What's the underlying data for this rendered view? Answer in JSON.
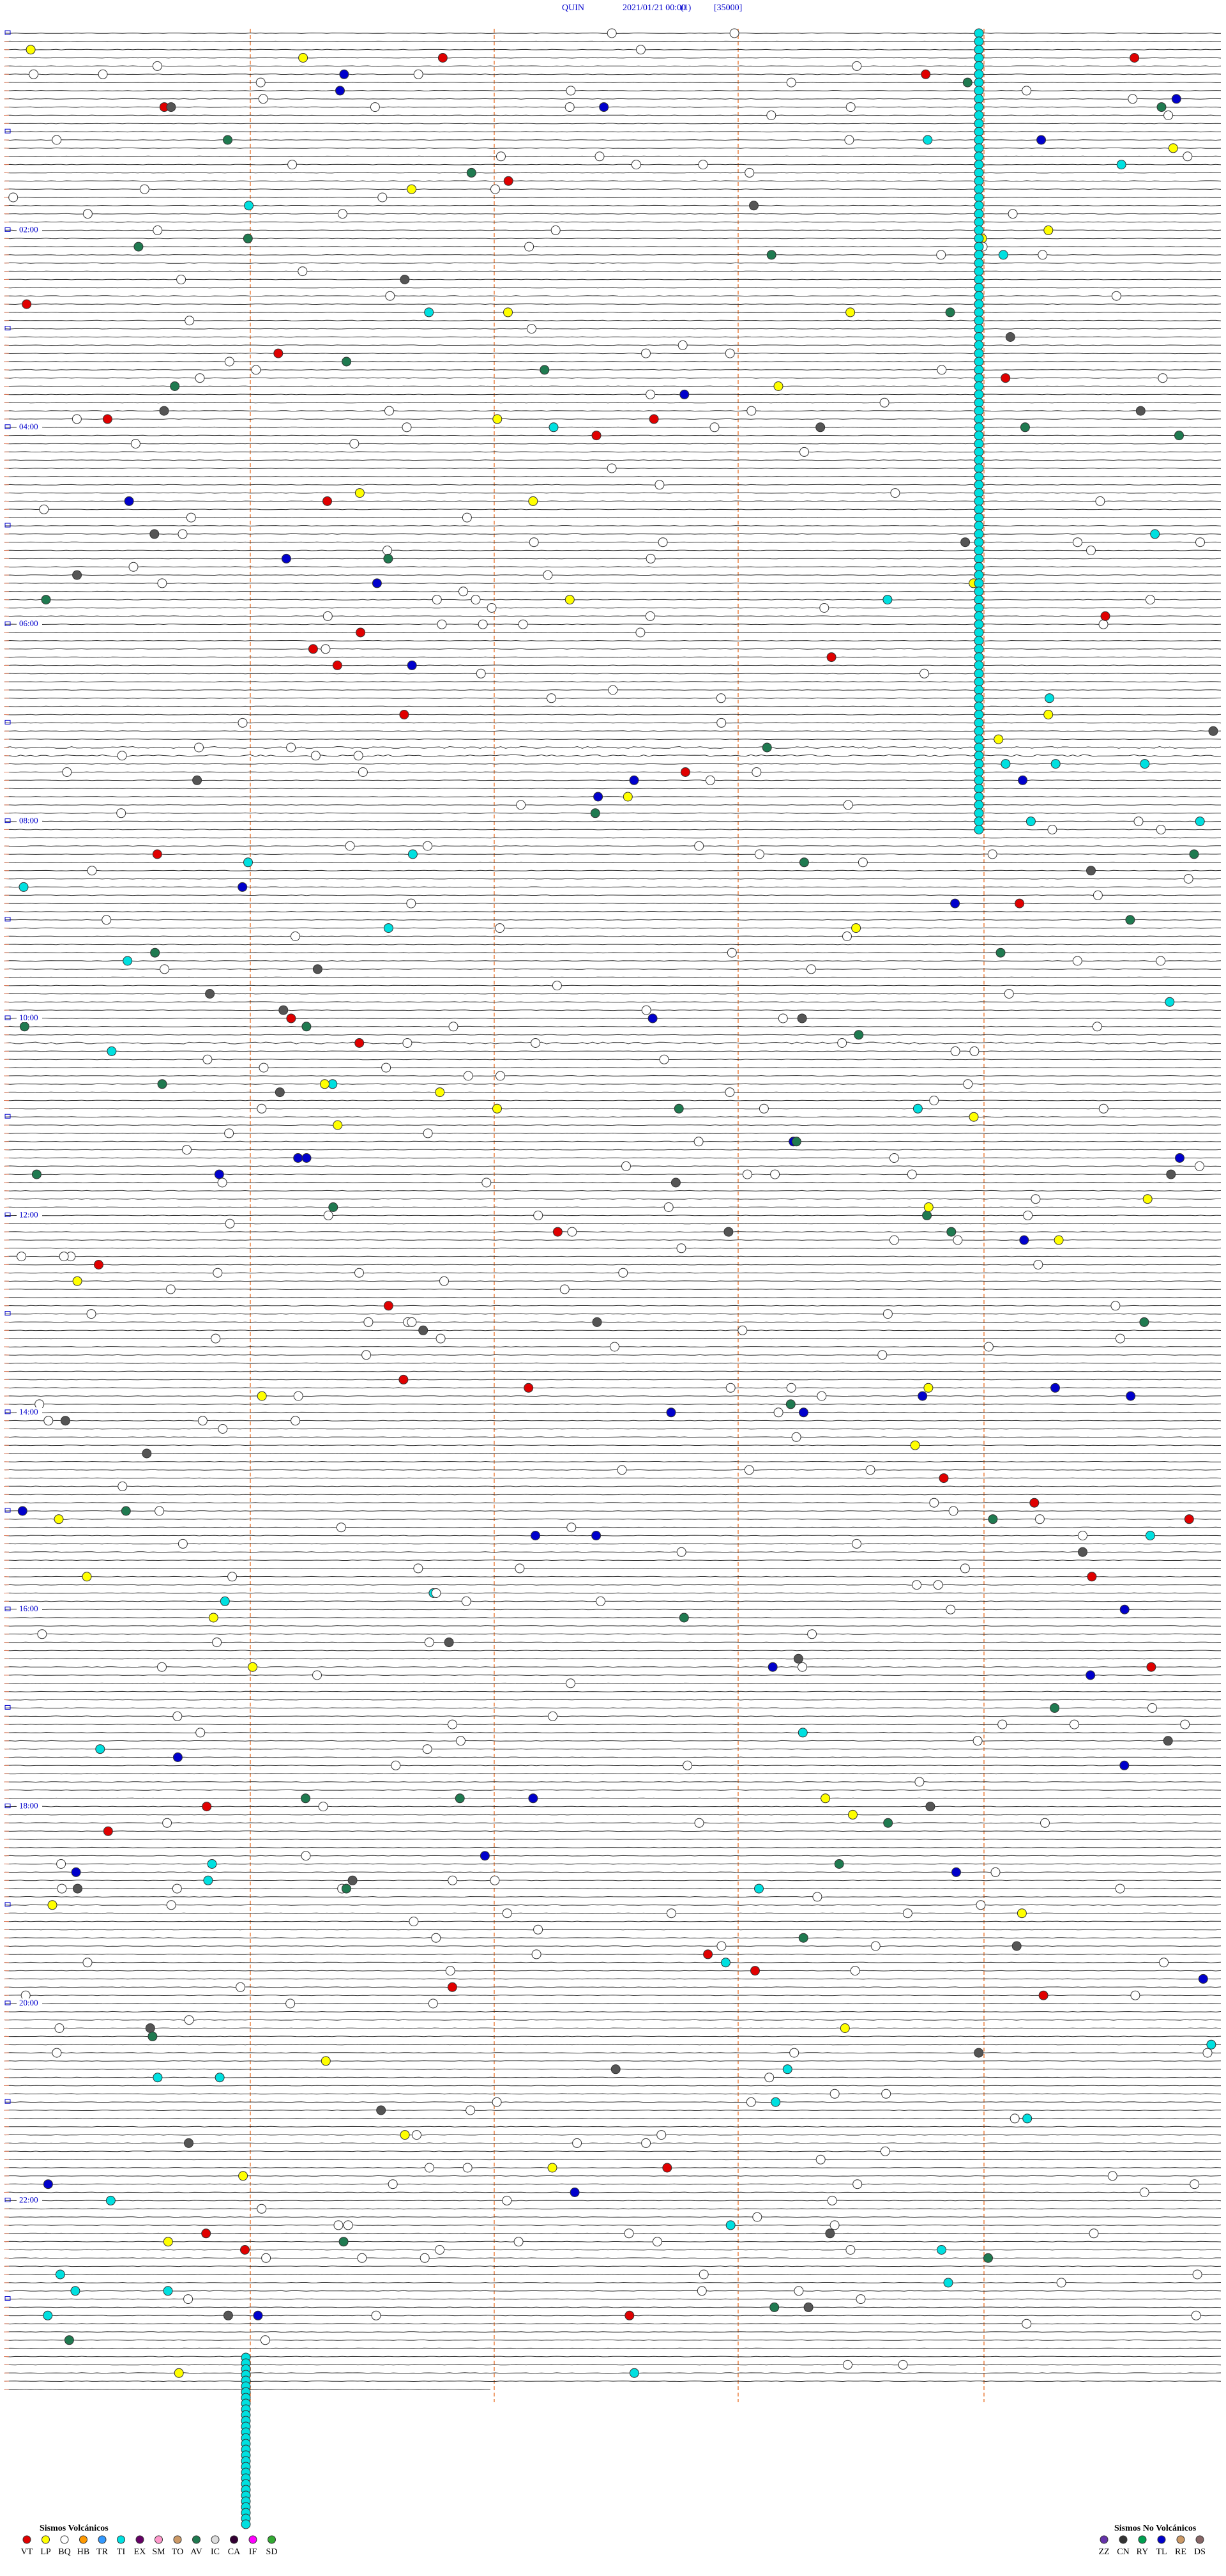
{
  "header": {
    "station": "QUIN",
    "datetime": "2021/01/21 00:00",
    "channel": "(1)",
    "scale": "[35000]"
  },
  "hour_labels": [
    "02:00",
    "04:00",
    "06:00",
    "08:00",
    "10:00",
    "12:00",
    "14:00",
    "16:00",
    "18:00",
    "20:00",
    "22:00"
  ],
  "legend": {
    "volcanic": {
      "title": "Sismos Volcánicos",
      "items": [
        {
          "label": "VT",
          "color": "#e00000"
        },
        {
          "label": "LP",
          "color": "#ffff00"
        },
        {
          "label": "BQ",
          "color": "#ffffff"
        },
        {
          "label": "HB",
          "color": "#ff9900"
        },
        {
          "label": "TR",
          "color": "#3399ff"
        },
        {
          "label": "TI",
          "color": "#00e0e0"
        },
        {
          "label": "EX",
          "color": "#660066"
        },
        {
          "label": "SM",
          "color": "#ff99cc"
        },
        {
          "label": "TO",
          "color": "#cc9966"
        },
        {
          "label": "AV",
          "color": "#1f7a50"
        },
        {
          "label": "IC",
          "color": "#dddddd"
        },
        {
          "label": "CA",
          "color": "#330033"
        },
        {
          "label": "IF",
          "color": "#ff00ff"
        },
        {
          "label": "SD",
          "color": "#33aa33"
        }
      ]
    },
    "non_volcanic": {
      "title": "Sismos No Volcánicos",
      "items": [
        {
          "label": "ZZ",
          "color": "#6633aa"
        },
        {
          "label": "CN",
          "color": "#333333"
        },
        {
          "label": "RY",
          "color": "#00a050"
        },
        {
          "label": "TL",
          "color": "#0000cc"
        },
        {
          "label": "RE",
          "color": "#cc9966"
        },
        {
          "label": "DS",
          "color": "#886666"
        }
      ]
    }
  }
}
